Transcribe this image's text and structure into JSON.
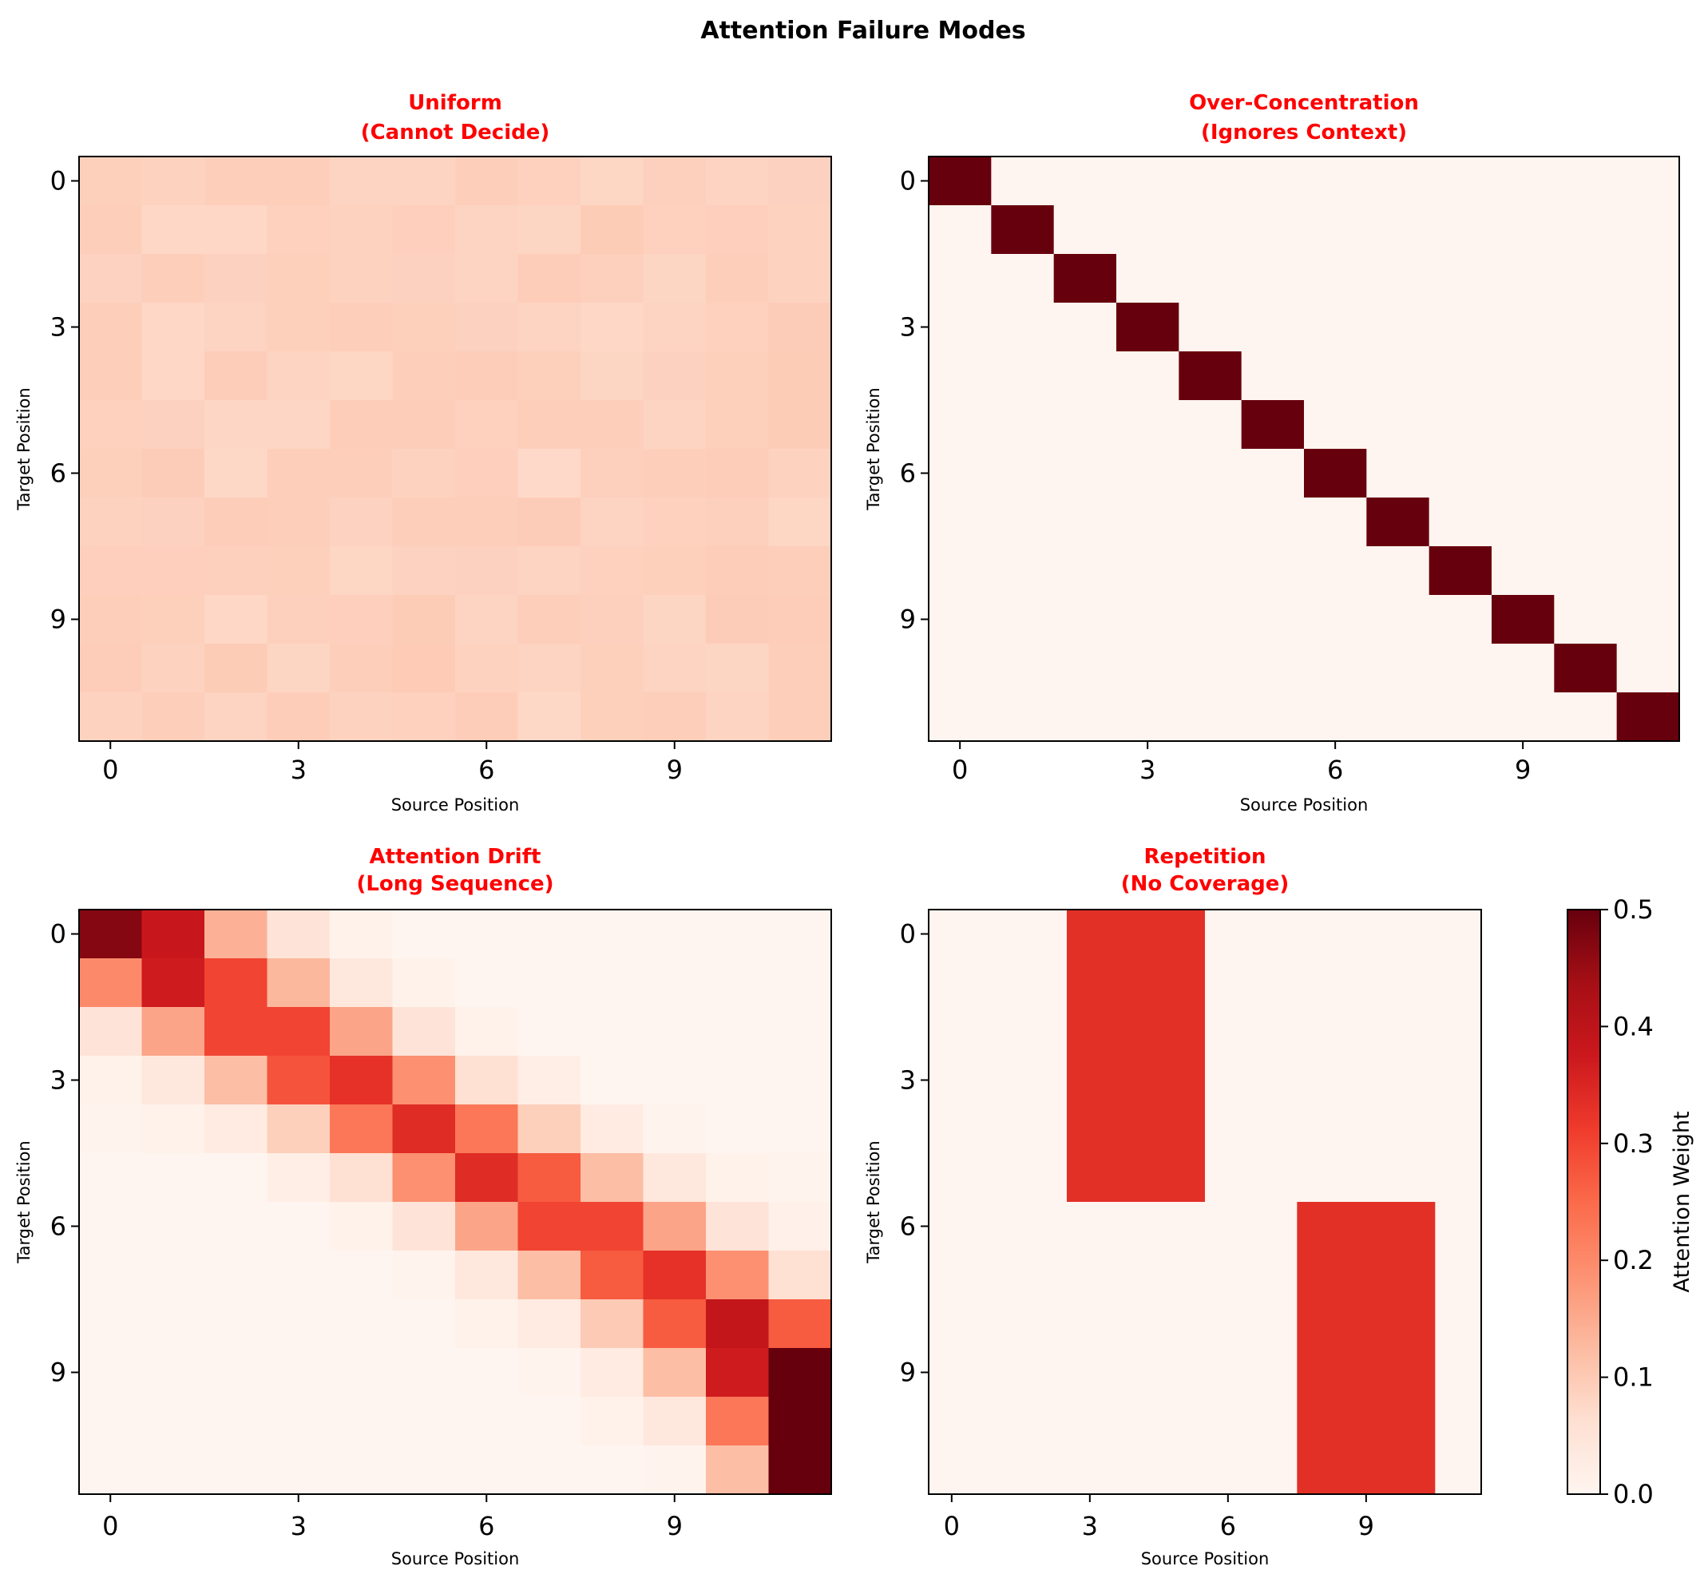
{
  "chart_data": {
    "type": "heatmap",
    "title": "Attention Failure Modes",
    "colormap": "Reds",
    "colormap_stops": [
      "#fff5f0",
      "#fee0d2",
      "#fcbba1",
      "#fc9272",
      "#fb6a4a",
      "#ef3b2c",
      "#cb181d",
      "#a50f15",
      "#67000d"
    ],
    "vmin": 0.0,
    "vmax": 0.5,
    "colorbar": {
      "label": "Attention Weight",
      "ticks": [
        0.0,
        0.1,
        0.2,
        0.3,
        0.4,
        0.5
      ],
      "tick_labels": [
        "0.0",
        "0.1",
        "0.2",
        "0.3",
        "0.4",
        "0.5"
      ]
    },
    "panels": [
      {
        "title_line1": "Uniform",
        "title_line2": "(Cannot Decide)",
        "xlabel": "Source Position",
        "ylabel": "Target Position",
        "xticks": [
          0,
          3,
          6,
          9
        ],
        "xtick_labels": [
          "0",
          "3",
          "6",
          "9"
        ],
        "yticks": [
          0,
          3,
          6,
          9
        ],
        "ytick_labels": [
          "0",
          "3",
          "6",
          "9"
        ],
        "values": [
          [
            0.09,
            0.085,
            0.092,
            0.093,
            0.083,
            0.083,
            0.092,
            0.088,
            0.08,
            0.089,
            0.084,
            0.087
          ],
          [
            0.092,
            0.078,
            0.078,
            0.088,
            0.085,
            0.091,
            0.083,
            0.081,
            0.097,
            0.088,
            0.091,
            0.085
          ],
          [
            0.086,
            0.092,
            0.087,
            0.09,
            0.085,
            0.087,
            0.083,
            0.095,
            0.089,
            0.081,
            0.092,
            0.085
          ],
          [
            0.093,
            0.078,
            0.084,
            0.09,
            0.093,
            0.09,
            0.087,
            0.083,
            0.078,
            0.084,
            0.088,
            0.096
          ],
          [
            0.093,
            0.078,
            0.094,
            0.083,
            0.08,
            0.092,
            0.095,
            0.09,
            0.081,
            0.087,
            0.09,
            0.097
          ],
          [
            0.088,
            0.087,
            0.079,
            0.079,
            0.094,
            0.095,
            0.088,
            0.092,
            0.093,
            0.083,
            0.09,
            0.097
          ],
          [
            0.09,
            0.096,
            0.076,
            0.093,
            0.092,
            0.085,
            0.091,
            0.074,
            0.089,
            0.093,
            0.095,
            0.085
          ],
          [
            0.085,
            0.087,
            0.095,
            0.092,
            0.086,
            0.092,
            0.093,
            0.096,
            0.084,
            0.088,
            0.089,
            0.08
          ],
          [
            0.091,
            0.091,
            0.089,
            0.09,
            0.08,
            0.086,
            0.087,
            0.084,
            0.088,
            0.09,
            0.095,
            0.092
          ],
          [
            0.092,
            0.09,
            0.078,
            0.089,
            0.091,
            0.097,
            0.084,
            0.093,
            0.089,
            0.081,
            0.096,
            0.094
          ],
          [
            0.094,
            0.085,
            0.097,
            0.081,
            0.092,
            0.098,
            0.085,
            0.084,
            0.09,
            0.084,
            0.081,
            0.092
          ],
          [
            0.085,
            0.092,
            0.084,
            0.094,
            0.085,
            0.088,
            0.094,
            0.076,
            0.09,
            0.093,
            0.083,
            0.092
          ]
        ]
      },
      {
        "title_line1": "Over-Concentration",
        "title_line2": "(Ignores Context)",
        "xlabel": "Source Position",
        "ylabel": "Target Position",
        "xticks": [
          0,
          3,
          6,
          9
        ],
        "xtick_labels": [
          "0",
          "3",
          "6",
          "9"
        ],
        "yticks": [
          0,
          3,
          6,
          9
        ],
        "ytick_labels": [
          "0",
          "3",
          "6",
          "9"
        ],
        "values": "identity-12"
      },
      {
        "title_line1": "Attention Drift",
        "title_line2": "(Long Sequence)",
        "xlabel": "Source Position",
        "ylabel": "Target Position",
        "xticks": [
          0,
          3,
          6,
          9
        ],
        "xtick_labels": [
          "0",
          "3",
          "6",
          "9"
        ],
        "yticks": [
          0,
          3,
          6,
          9
        ],
        "ytick_labels": [
          "0",
          "3",
          "6",
          "9"
        ],
        "values": [
          [
            0.47,
            0.38,
            0.14,
            0.05,
            0.01,
            0,
            0,
            0,
            0,
            0,
            0,
            0
          ],
          [
            0.2,
            0.37,
            0.3,
            0.13,
            0.04,
            0.01,
            0,
            0,
            0,
            0,
            0,
            0
          ],
          [
            0.05,
            0.16,
            0.3,
            0.3,
            0.16,
            0.05,
            0.01,
            0,
            0,
            0,
            0,
            0
          ],
          [
            0.01,
            0.04,
            0.12,
            0.28,
            0.33,
            0.19,
            0.06,
            0.02,
            0,
            0,
            0,
            0
          ],
          [
            0.005,
            0.01,
            0.03,
            0.09,
            0.23,
            0.34,
            0.23,
            0.09,
            0.03,
            0.005,
            0,
            0
          ],
          [
            0,
            0,
            0,
            0.02,
            0.06,
            0.19,
            0.34,
            0.27,
            0.12,
            0.04,
            0.01,
            0.005
          ],
          [
            0,
            0,
            0,
            0,
            0.01,
            0.05,
            0.16,
            0.3,
            0.3,
            0.16,
            0.05,
            0.015
          ],
          [
            0,
            0,
            0,
            0,
            0,
            0.005,
            0.04,
            0.12,
            0.27,
            0.33,
            0.19,
            0.06
          ],
          [
            0,
            0,
            0,
            0,
            0,
            0,
            0.01,
            0.03,
            0.1,
            0.27,
            0.39,
            0.27
          ],
          [
            0,
            0,
            0,
            0,
            0,
            0,
            0,
            0.005,
            0.03,
            0.12,
            0.37,
            0.6
          ],
          [
            0,
            0,
            0,
            0,
            0,
            0,
            0,
            0,
            0.01,
            0.04,
            0.23,
            0.7
          ],
          [
            0,
            0,
            0,
            0,
            0,
            0,
            0,
            0,
            0,
            0.005,
            0.12,
            0.85
          ]
        ]
      },
      {
        "title_line1": "Repetition",
        "title_line2": "(No Coverage)",
        "xlabel": "Source Position",
        "ylabel": "Target Position",
        "xticks": [
          0,
          3,
          6,
          9
        ],
        "xtick_labels": [
          "0",
          "3",
          "6",
          "9"
        ],
        "yticks": [
          0,
          3,
          6,
          9
        ],
        "ytick_labels": [
          "0",
          "3",
          "6",
          "9"
        ],
        "values": [
          [
            0,
            0,
            0,
            0.333,
            0.333,
            0.333,
            0,
            0,
            0,
            0,
            0,
            0
          ],
          [
            0,
            0,
            0,
            0.333,
            0.333,
            0.333,
            0,
            0,
            0,
            0,
            0,
            0
          ],
          [
            0,
            0,
            0,
            0.333,
            0.333,
            0.333,
            0,
            0,
            0,
            0,
            0,
            0
          ],
          [
            0,
            0,
            0,
            0.333,
            0.333,
            0.333,
            0,
            0,
            0,
            0,
            0,
            0
          ],
          [
            0,
            0,
            0,
            0.333,
            0.333,
            0.333,
            0,
            0,
            0,
            0,
            0,
            0
          ],
          [
            0,
            0,
            0,
            0.333,
            0.333,
            0.333,
            0,
            0,
            0,
            0,
            0,
            0
          ],
          [
            0,
            0,
            0,
            0,
            0,
            0,
            0,
            0,
            0.333,
            0.333,
            0.333,
            0
          ],
          [
            0,
            0,
            0,
            0,
            0,
            0,
            0,
            0,
            0.333,
            0.333,
            0.333,
            0
          ],
          [
            0,
            0,
            0,
            0,
            0,
            0,
            0,
            0,
            0.333,
            0.333,
            0.333,
            0
          ],
          [
            0,
            0,
            0,
            0,
            0,
            0,
            0,
            0,
            0.333,
            0.333,
            0.333,
            0
          ],
          [
            0,
            0,
            0,
            0,
            0,
            0,
            0,
            0,
            0.333,
            0.333,
            0.333,
            0
          ],
          [
            0,
            0,
            0,
            0,
            0,
            0,
            0,
            0,
            0.333,
            0.333,
            0.333,
            0
          ]
        ]
      }
    ]
  }
}
